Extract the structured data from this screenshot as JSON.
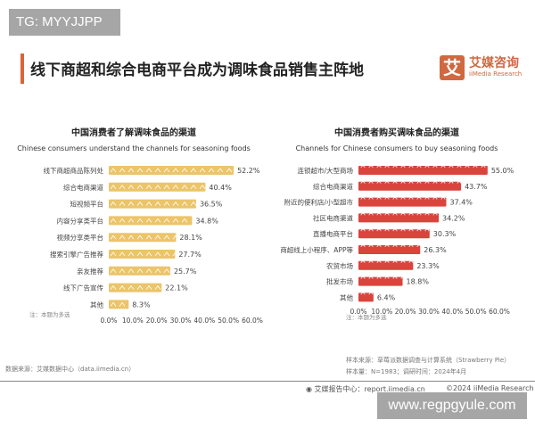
{
  "watermark_top": "TG: MYYJJPP",
  "watermark_bottom": "www.regpgyule.com",
  "page_title": "线下商超和综合电商平台成为调味食品销售主阵地",
  "logo": {
    "mark": "艾",
    "cn": "艾媒咨询",
    "en": "iiMedia Research"
  },
  "chart_data": [
    {
      "type": "bar",
      "orientation": "horizontal",
      "title": "中国消费者了解调味食品的渠道",
      "subtitle": "Chinese consumers understand the channels for seasoning foods",
      "categories": [
        "线下商超商品陈列处",
        "综合电商渠道",
        "短视频平台",
        "内容分享类平台",
        "视频分享类平台",
        "搜索引擎广告推荐",
        "亲友推荐",
        "线下广告宣传",
        "其他"
      ],
      "values": [
        52.2,
        40.4,
        36.5,
        34.8,
        28.1,
        27.7,
        25.7,
        22.1,
        8.3
      ],
      "value_labels": [
        "52.2%",
        "40.4%",
        "36.5%",
        "34.8%",
        "28.1%",
        "27.7%",
        "25.7%",
        "22.1%",
        "8.3%"
      ],
      "xlim": [
        0,
        60
      ],
      "xticks": [
        "0.0%",
        "10.0%",
        "20.0%",
        "30.0%",
        "40.0%",
        "50.0%",
        "60.0%"
      ],
      "note": "注：本题为多选",
      "color": "#ecc469",
      "grid": false
    },
    {
      "type": "bar",
      "orientation": "horizontal",
      "title": "中国消费者购买调味食品的渠道",
      "subtitle": "Channels for Chinese consumers to buy seasoning foods",
      "categories": [
        "连锁超市/大型商场",
        "综合电商渠道",
        "附近的便利店/小型超市",
        "社区电商渠道",
        "直播电商平台",
        "商超线上小程序、APP等",
        "农贸市场",
        "批发市场",
        "其他"
      ],
      "values": [
        55.0,
        43.7,
        37.4,
        34.2,
        30.3,
        26.3,
        23.3,
        18.8,
        6.4
      ],
      "value_labels": [
        "55.0%",
        "43.7%",
        "37.4%",
        "34.2%",
        "30.3%",
        "26.3%",
        "23.3%",
        "18.8%",
        "6.4%"
      ],
      "xlim": [
        0,
        60
      ],
      "xticks": [
        "0.0%",
        "10.0%",
        "20.0%",
        "30.0%",
        "40.0%",
        "50.0%",
        "60.0%"
      ],
      "note": "注：本题为多选",
      "color": "#d9443c",
      "grid": false
    }
  ],
  "footer": {
    "data_source": "数据来源：艾媒数据中心（data.iimedia.cn）",
    "sample_source": "样本来源：草莓派数据调查与计算系统（Strawberry Pie）",
    "sample_size": "样本量：N=1983；调研时间：2024年4月",
    "report_center": "艾媒报告中心：report.iimedia.cn",
    "copyright": "©2024  iiMedia Research Inc"
  }
}
